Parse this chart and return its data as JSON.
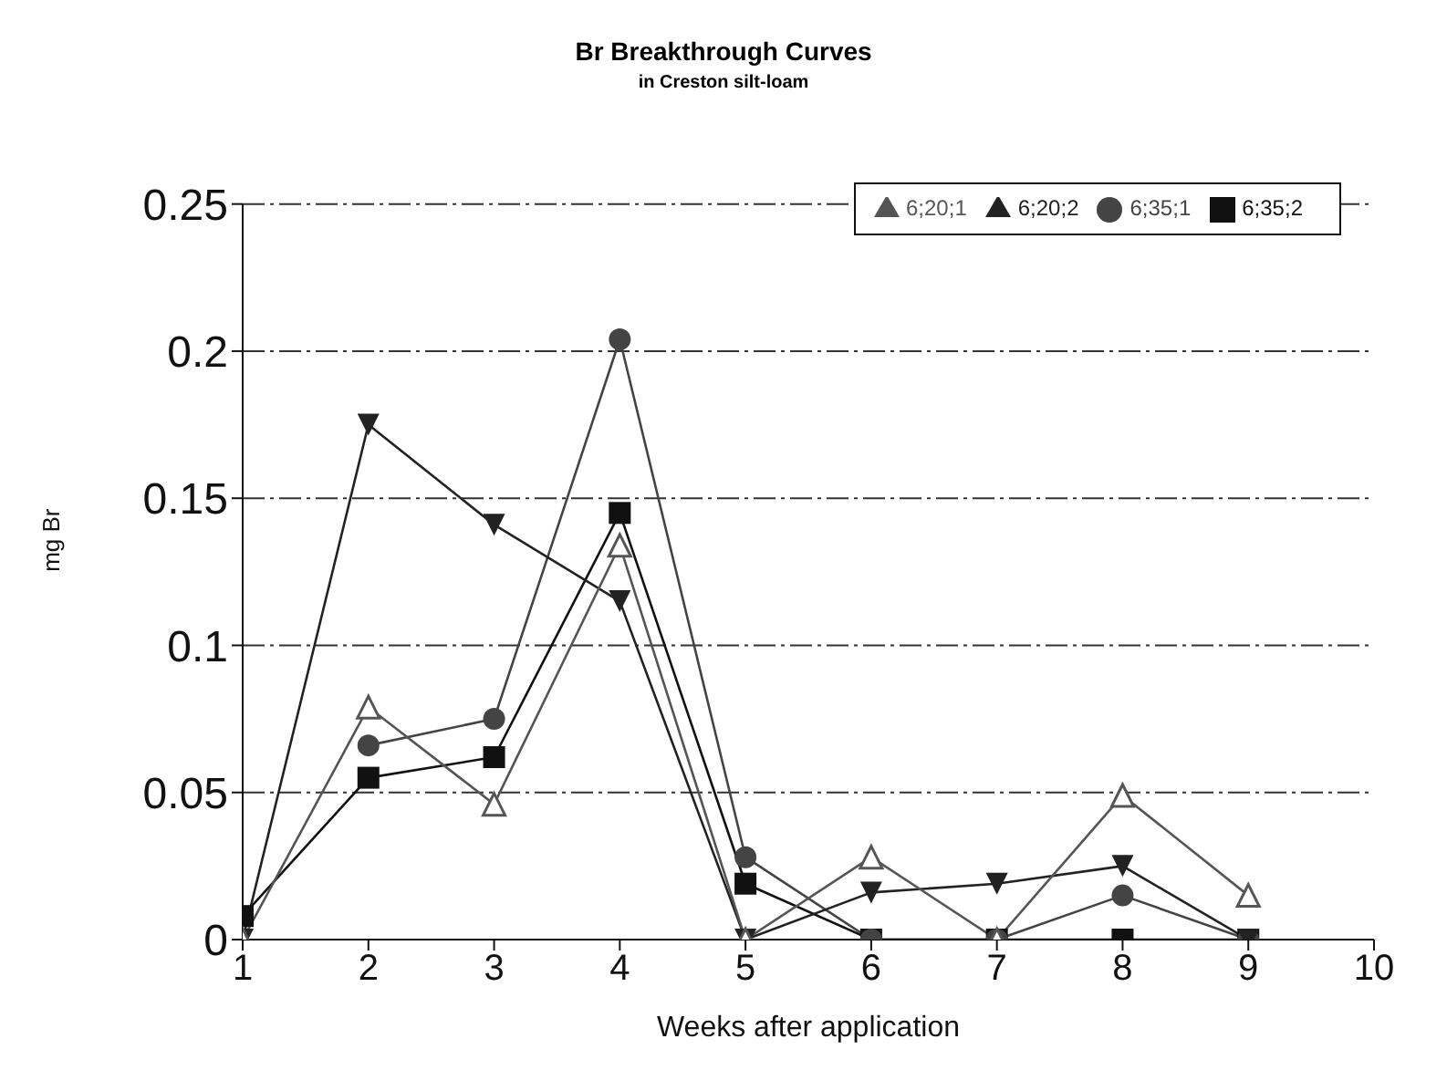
{
  "chart_data": {
    "type": "line",
    "title": "Br Breakthrough Curves",
    "subtitle": "in Creston silt-loam",
    "xlabel": "Weeks after application",
    "ylabel": "mg Br",
    "x": [
      1,
      2,
      3,
      4,
      5,
      6,
      7,
      8,
      9
    ],
    "series": [
      {
        "name": "6;35;2",
        "color": "#111111",
        "marker": "square",
        "values": [
          0.008,
          0.055,
          0.062,
          0.145,
          0.019,
          0,
          0,
          0,
          0
        ]
      },
      {
        "name": "6;35;1",
        "color": "#444444",
        "marker": "circle",
        "values": [
          null,
          0.066,
          0.075,
          0.204,
          0.028,
          0,
          0,
          0.015,
          0
        ]
      },
      {
        "name": "6;20;2",
        "color": "#222222",
        "marker": "triangle-down",
        "values": [
          0,
          0.175,
          0.141,
          0.115,
          0,
          0.016,
          0.019,
          0.025,
          0
        ]
      },
      {
        "name": "6;20;1",
        "color": "#555555",
        "marker": "triangle-open",
        "values": [
          0,
          0.079,
          0.046,
          0.134,
          0,
          0.028,
          0,
          0.049,
          0.015
        ]
      }
    ],
    "xlim": [
      1,
      10
    ],
    "xticks": [
      1,
      2,
      3,
      4,
      5,
      6,
      7,
      8,
      9,
      10
    ],
    "ylim": [
      0,
      0.25
    ],
    "yticks": [
      0,
      0.05,
      0.1,
      0.15,
      0.2,
      0.25
    ],
    "grid": "y",
    "legend": "top right"
  }
}
